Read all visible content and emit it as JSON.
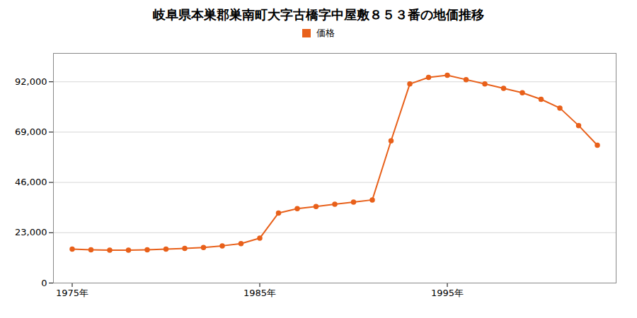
{
  "chart_data": {
    "type": "line",
    "title": "岐阜県本巣郡巣南町大字古橋字中屋敷８５３番の地価推移",
    "x": [
      1975,
      1976,
      1977,
      1978,
      1979,
      1980,
      1981,
      1982,
      1983,
      1984,
      1985,
      1986,
      1987,
      1988,
      1989,
      1990,
      1991,
      1992,
      1993,
      1994,
      1995,
      1996,
      1997,
      1998,
      1999,
      2000,
      2001,
      2002,
      2003
    ],
    "series": [
      {
        "name": "価格",
        "color": "#e8601a",
        "marker": "circle",
        "values": [
          15500,
          15200,
          15000,
          15000,
          15200,
          15500,
          15800,
          16200,
          17000,
          18000,
          20500,
          32000,
          34000,
          35000,
          36000,
          37000,
          38000,
          65000,
          91000,
          94000,
          95000,
          93000,
          91000,
          89000,
          87000,
          84000,
          80000,
          72000,
          63000
        ]
      }
    ],
    "xlim": [
      1974,
      2004
    ],
    "xticks": [
      {
        "value": 1975,
        "label": "1975年"
      },
      {
        "value": 1985,
        "label": "1985年"
      },
      {
        "value": 1995,
        "label": "1995年"
      }
    ],
    "ylim": [
      0,
      105000
    ],
    "yticks": [
      0,
      {
        "value": 23000,
        "label": "23,000"
      },
      {
        "value": 46000,
        "label": "46,000"
      },
      {
        "value": 69000,
        "label": "69,000"
      },
      {
        "value": 92000,
        "label": "92,000"
      }
    ],
    "grid": "y",
    "legend": "top"
  }
}
